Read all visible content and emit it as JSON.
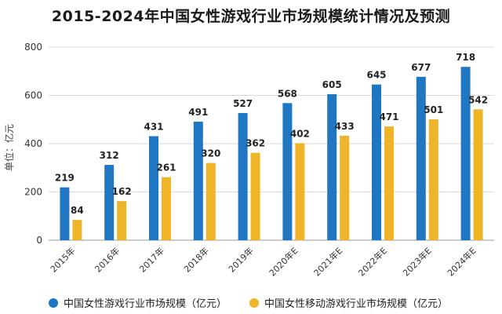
{
  "chart_data": {
    "type": "bar",
    "title": "2015-2024年中国女性游戏行业市场规模统计情况及预测",
    "ylabel": "单位：亿元",
    "xlabel": "",
    "ylim": [
      0,
      800
    ],
    "yticks": [
      "0",
      "200",
      "400",
      "600",
      "800"
    ],
    "grid": true,
    "legend_position": "bottom",
    "categories": [
      "2015年",
      "2016年",
      "2017年",
      "2018年",
      "2019年",
      "2020年E",
      "2021年E",
      "2022年E",
      "2023年E",
      "2024年E"
    ],
    "series": [
      {
        "name": "中国女性游戏行业市场规模（亿元）",
        "color": "#1f77c4",
        "values": [
          219,
          312,
          431,
          491,
          527,
          568,
          605,
          645,
          677,
          718
        ]
      },
      {
        "name": "中国女性移动游戏行业市场规模（亿元）",
        "color": "#f0b429",
        "values": [
          84,
          162,
          261,
          320,
          362,
          402,
          433,
          471,
          501,
          542
        ]
      }
    ]
  }
}
